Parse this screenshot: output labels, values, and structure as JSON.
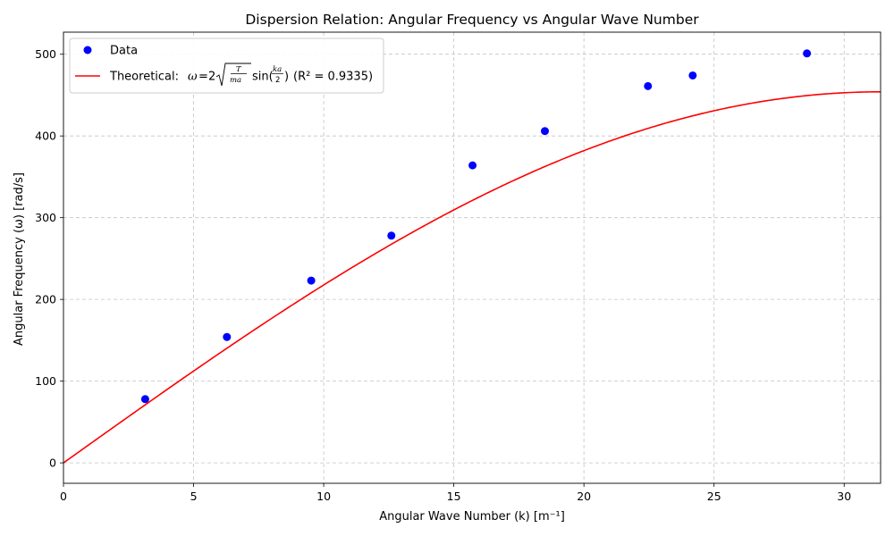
{
  "chart_data": {
    "type": "scatter",
    "title": "Dispersion Relation: Angular Frequency vs Angular Wave Number",
    "xlabel": "Angular Wave Number (k) [m⁻¹]",
    "ylabel": "Angular Frequency (ω) [rad/s]",
    "xlim": [
      0,
      31.4
    ],
    "ylim": [
      -25,
      527
    ],
    "xticks": [
      0,
      5,
      10,
      15,
      20,
      25,
      30
    ],
    "yticks": [
      0,
      100,
      200,
      300,
      400,
      500
    ],
    "grid": true,
    "legend_position": "top-left",
    "series": [
      {
        "name": "Data",
        "kind": "scatter",
        "color": "#0000ff",
        "x": [
          3.14,
          6.28,
          9.52,
          12.6,
          15.72,
          18.5,
          22.46,
          24.18,
          28.57
        ],
        "y": [
          78,
          154,
          223,
          278,
          364,
          406,
          461,
          474,
          501
        ]
      },
      {
        "name": "Theoretical",
        "kind": "line",
        "color": "#ff0000",
        "model": {
          "amplitude": 454,
          "a": 0.1
        },
        "r_squared": "(R² = 0.9335)"
      }
    ],
    "legend": {
      "data_label": "Data",
      "theory_prefix": "Theoretical:",
      "theory_suffix": "(R² = 0.9335)"
    }
  }
}
